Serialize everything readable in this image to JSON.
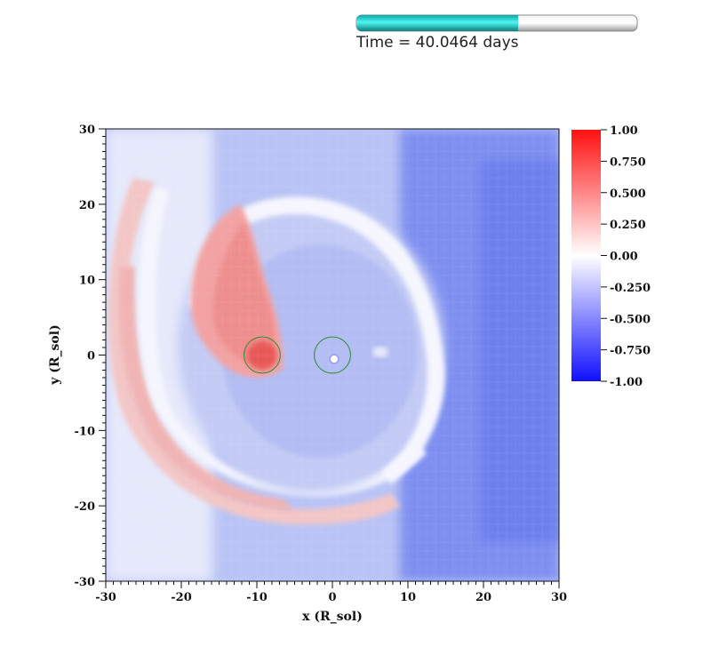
{
  "time_label": "Time = 40.0464 days",
  "time_progress_fraction": 0.576,
  "chart_data": {
    "type": "heatmap",
    "title": "",
    "xlabel": "x (R_sol)",
    "ylabel": "y (R_sol)",
    "xlim": [
      -30,
      30
    ],
    "ylim": [
      -30,
      30
    ],
    "xticks": [
      "-30",
      "-20",
      "-10",
      "0",
      "10",
      "20",
      "30"
    ],
    "yticks": [
      "-30",
      "-20",
      "-10",
      "0",
      "10",
      "20",
      "30"
    ],
    "colorbar": {
      "range": [
        -1.0,
        1.0
      ],
      "ticks": [
        "1.00",
        "0.750",
        "0.500",
        "0.250",
        "0.00",
        "-0.250",
        "-0.500",
        "-0.750",
        "-1.00"
      ],
      "colormap": [
        "#1010ff",
        "#ffffff",
        "#ff1010"
      ]
    },
    "markers": [
      {
        "name": "circle-left",
        "x": -9.3,
        "y": 0,
        "r": 2.4,
        "color": "#2a8a2a"
      },
      {
        "name": "circle-center",
        "x": 0,
        "y": 0,
        "r": 2.4,
        "color": "#2a8a2a"
      }
    ],
    "grid": false,
    "legend": "right"
  }
}
